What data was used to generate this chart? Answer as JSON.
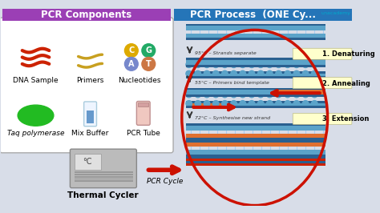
{
  "background_color": "#d8dde8",
  "left_panel_bg": "#ffffff",
  "left_header_bg": "#9b3fb5",
  "right_header_bg": "#2575b8",
  "left_header_text": "PCR Components",
  "right_header_text": "PCR Process  (ONE Cy...",
  "header_text_color": "#ffffff",
  "header_fontsize": 8.5,
  "label_fontsize": 6.5,
  "step_labels": [
    "1. Denaturing",
    "2. Annealing",
    "3. Extension"
  ],
  "step_temps": [
    "95°C – Strands separate",
    "55°C – Primers bind template",
    "72°C – Synthesise new strand"
  ],
  "step_label_bg": "#ffffcc",
  "pcr_cycle_text": "PCR Cycle",
  "thermal_cycler_text": "Thermal Cycler",
  "components": [
    "DNA Sample",
    "Primers",
    "Nucleotides",
    "Taq polymerase",
    "Mix Buffer",
    "PCR Tube"
  ],
  "dna_color": "#cc2200",
  "primer_color": "#c8a020",
  "taq_color": "#22bb22",
  "nucleotide_colors": [
    "#ddaa00",
    "#22aa66",
    "#7788cc",
    "#cc7744"
  ],
  "nucleotide_letters": [
    "C",
    "G",
    "A",
    "T"
  ],
  "strand_blue": "#5ba3c9",
  "strand_orange": "#e07030",
  "strand_dark": "#2a6090",
  "rung_color": "#aaccee",
  "arrow_color": "#cc1100",
  "down_arrow_color": "#333333",
  "unacademy_color": "#00aacc"
}
